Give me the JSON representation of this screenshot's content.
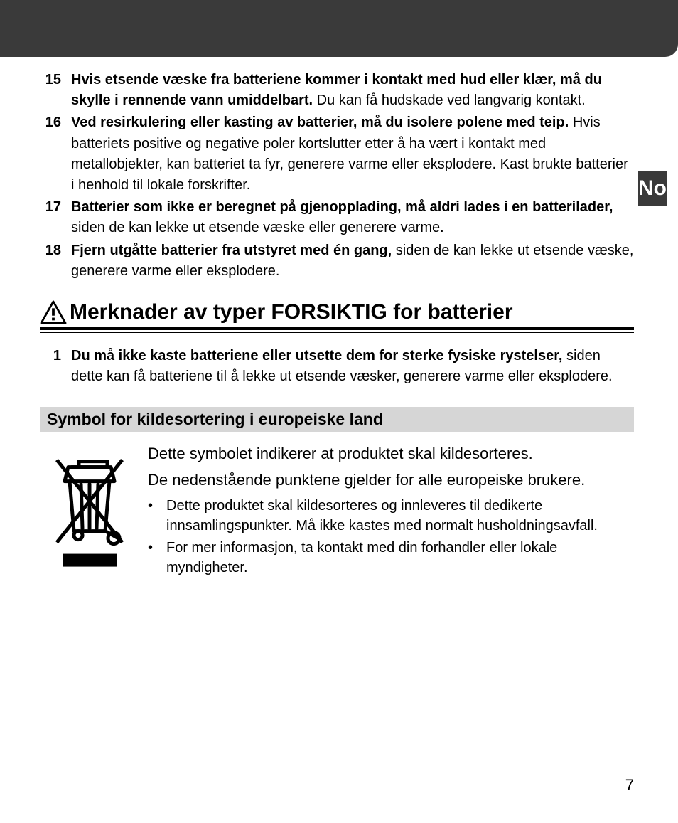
{
  "side_tab": "No",
  "page_number": "7",
  "warnings": [
    {
      "n": "15",
      "bold": "Hvis etsende væske fra batteriene kommer i kontakt med hud eller klær, må du skylle i rennende vann umiddelbart.",
      "rest": " Du kan få hudskade ved langvarig kontakt."
    },
    {
      "n": "16",
      "bold": "Ved resirkulering eller kasting av batterier, må du isolere polene med teip.",
      "rest": " Hvis batteriets positive og negative poler kortslutter etter å ha vært i kontakt med metallobjekter, kan batteriet ta fyr, generere varme eller eksplodere. Kast brukte batterier i henhold til lokale forskrifter."
    },
    {
      "n": "17",
      "bold": "Batterier som ikke er beregnet på gjenopplading, må aldri lades i en batterilader,",
      "rest": " siden de kan lekke ut etsende væske eller generere varme."
    },
    {
      "n": "18",
      "bold": "Fjern utgåtte batterier fra utstyret med én gang,",
      "rest": " siden de kan lekke ut etsende væske, generere varme eller eksplodere."
    }
  ],
  "section_title": "Merknader av typer FORSIKTIG for batterier",
  "cautions": [
    {
      "n": "1",
      "bold": "Du må ikke kaste batteriene eller utsette dem for sterke fysiske rystelser,",
      "rest": " siden dette kan få batteriene til å lekke ut etsende væsker, generere varme eller eksplodere."
    }
  ],
  "sub_heading": "Symbol for kildesortering i europeiske land",
  "symbol_p1": "Dette symbolet indikerer at produktet skal kildesorteres.",
  "symbol_p2": "De nedenstående punktene gjelder for alle europeiske brukere.",
  "bullets": [
    "Dette produktet skal kildesorteres og innleveres til dedikerte innsamlingspunkter. Må ikke kastes med normalt husholdningsavfall.",
    "For mer informasjon, ta kontakt med din forhandler eller lokale myndigheter."
  ]
}
